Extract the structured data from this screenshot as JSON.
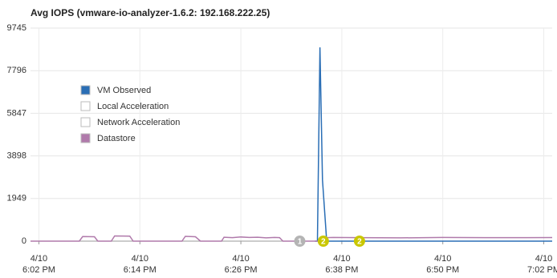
{
  "chart_data": {
    "type": "line",
    "title": "Avg IOPS (vmware-io-analyzer-1.6.2: 192.168.222.25)",
    "xlim": [
      1081,
      1143
    ],
    "xticks": [
      {
        "value": 1082,
        "label": "4/10\n6:02 PM"
      },
      {
        "value": 1094,
        "label": "4/10\n6:14 PM"
      },
      {
        "value": 1106,
        "label": "4/10\n6:26 PM"
      },
      {
        "value": 1118,
        "label": "4/10\n6:38 PM"
      },
      {
        "value": 1130,
        "label": "4/10\n6:50 PM"
      },
      {
        "value": 1142,
        "label": "4/10\n7:02 PM"
      }
    ],
    "ylim": [
      0,
      9745
    ],
    "yticks": [
      0,
      1949,
      3898,
      5847,
      7796,
      9745
    ],
    "grid": true,
    "legend": "upper left",
    "x": [
      1081,
      1086.8,
      1087.2,
      1088.6,
      1089,
      1090.6,
      1091,
      1092.8,
      1093.2,
      1099,
      1099.4,
      1100.6,
      1101.2,
      1103.7,
      1104,
      1105,
      1106,
      1107,
      1108,
      1109,
      1110,
      1110.6,
      1111,
      1114.8,
      1115.1,
      1115.4,
      1115.7,
      1116.2,
      1117,
      1120,
      1125,
      1130,
      1135,
      1140,
      1143
    ],
    "series": [
      {
        "name": "VM Observed",
        "color": "#2a6eb5",
        "values": [
          null,
          null,
          null,
          null,
          null,
          null,
          null,
          null,
          null,
          null,
          null,
          null,
          null,
          null,
          null,
          null,
          null,
          null,
          null,
          null,
          null,
          null,
          null,
          0,
          0,
          8860,
          2800,
          0,
          0,
          0,
          0,
          0,
          0,
          0,
          0
        ]
      },
      {
        "name": "Local Acceleration",
        "color": "#ffffff",
        "values": [
          null,
          null,
          null,
          null,
          null,
          null,
          null,
          null,
          null,
          null,
          null,
          null,
          null,
          null,
          null,
          null,
          null,
          null,
          null,
          null,
          null,
          null,
          null,
          null,
          null,
          null,
          null,
          null,
          null,
          null,
          null,
          null,
          null,
          null,
          null
        ]
      },
      {
        "name": "Network Acceleration",
        "color": "#ffffff",
        "values": [
          null,
          null,
          null,
          null,
          null,
          null,
          null,
          null,
          null,
          null,
          null,
          null,
          null,
          null,
          null,
          null,
          null,
          null,
          null,
          null,
          null,
          null,
          null,
          null,
          null,
          null,
          null,
          null,
          null,
          null,
          null,
          null,
          null,
          null,
          null
        ]
      },
      {
        "name": "Datastore",
        "color": "#b07aab",
        "values": [
          0,
          0,
          210,
          200,
          0,
          0,
          240,
          230,
          0,
          0,
          220,
          200,
          0,
          0,
          180,
          160,
          190,
          170,
          180,
          150,
          170,
          160,
          0,
          0,
          0,
          0,
          0,
          160,
          170,
          160,
          150,
          170,
          160,
          160,
          165
        ]
      }
    ],
    "markers": [
      {
        "x": 1113,
        "label": 1,
        "color": "#b4b4b4"
      },
      {
        "x": 1115.8,
        "label": 2,
        "color": "#c9c700"
      },
      {
        "x": 1120.1,
        "label": 2,
        "color": "#c9c700"
      }
    ]
  }
}
